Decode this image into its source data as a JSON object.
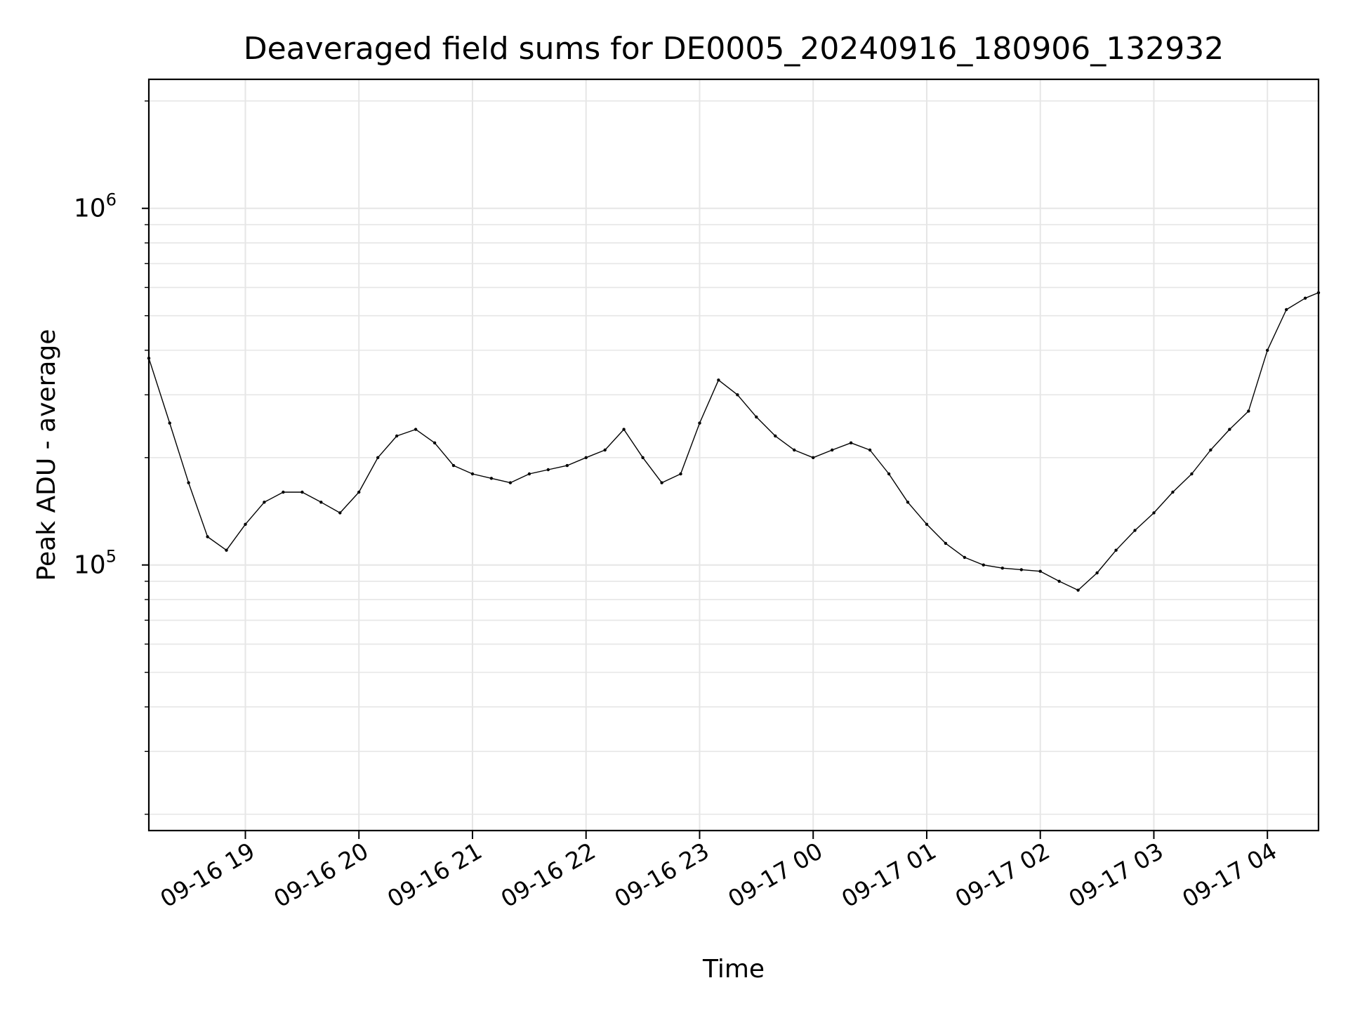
{
  "chart_data": {
    "type": "line",
    "title": "Deaveraged field sums for DE0005_20240916_180906_132932",
    "xlabel": "Time",
    "ylabel": "Peak ADU - average",
    "yscale": "log",
    "ylim": [
      18000,
      2300000
    ],
    "xlim": [
      "2024-09-16 18:09",
      "2024-09-17 04:27"
    ],
    "grid": true,
    "line_color": "#000000",
    "x_ticks": [
      "09-16 19",
      "09-16 20",
      "09-16 21",
      "09-16 22",
      "09-16 23",
      "09-17 00",
      "09-17 01",
      "09-17 02",
      "09-17 03",
      "09-17 04"
    ],
    "y_ticks": [
      {
        "base": "10",
        "exp": "5",
        "value": 100000
      },
      {
        "base": "10",
        "exp": "6",
        "value": 1000000
      }
    ],
    "series": [
      {
        "x": [
          "2024-09-16 18:09",
          "2024-09-16 18:20",
          "2024-09-16 18:30",
          "2024-09-16 18:40",
          "2024-09-16 18:50",
          "2024-09-16 19:00",
          "2024-09-16 19:10",
          "2024-09-16 19:20",
          "2024-09-16 19:30",
          "2024-09-16 19:40",
          "2024-09-16 19:50",
          "2024-09-16 20:00",
          "2024-09-16 20:10",
          "2024-09-16 20:20",
          "2024-09-16 20:30",
          "2024-09-16 20:40",
          "2024-09-16 20:50",
          "2024-09-16 21:00",
          "2024-09-16 21:10",
          "2024-09-16 21:20",
          "2024-09-16 21:30",
          "2024-09-16 21:40",
          "2024-09-16 21:50",
          "2024-09-16 22:00",
          "2024-09-16 22:10",
          "2024-09-16 22:20",
          "2024-09-16 22:30",
          "2024-09-16 22:40",
          "2024-09-16 22:50",
          "2024-09-16 23:00",
          "2024-09-16 23:10",
          "2024-09-16 23:20",
          "2024-09-16 23:30",
          "2024-09-16 23:40",
          "2024-09-16 23:50",
          "2024-09-17 00:00",
          "2024-09-17 00:10",
          "2024-09-17 00:20",
          "2024-09-17 00:30",
          "2024-09-17 00:40",
          "2024-09-17 00:50",
          "2024-09-17 01:00",
          "2024-09-17 01:10",
          "2024-09-17 01:20",
          "2024-09-17 01:30",
          "2024-09-17 01:40",
          "2024-09-17 01:50",
          "2024-09-17 02:00",
          "2024-09-17 02:10",
          "2024-09-17 02:20",
          "2024-09-17 02:30",
          "2024-09-17 02:40",
          "2024-09-17 02:50",
          "2024-09-17 03:00",
          "2024-09-17 03:10",
          "2024-09-17 03:20",
          "2024-09-17 03:30",
          "2024-09-17 03:40",
          "2024-09-17 03:50",
          "2024-09-17 04:00",
          "2024-09-17 04:10",
          "2024-09-17 04:20",
          "2024-09-17 04:27"
        ],
        "y": [
          380000,
          250000,
          170000,
          120000,
          110000,
          130000,
          150000,
          160000,
          160000,
          150000,
          140000,
          160000,
          200000,
          230000,
          240000,
          220000,
          190000,
          180000,
          175000,
          170000,
          180000,
          185000,
          190000,
          200000,
          210000,
          240000,
          200000,
          170000,
          180000,
          250000,
          330000,
          300000,
          260000,
          230000,
          210000,
          200000,
          210000,
          220000,
          210000,
          180000,
          150000,
          130000,
          115000,
          105000,
          100000,
          98000,
          97000,
          96000,
          90000,
          85000,
          95000,
          110000,
          125000,
          140000,
          160000,
          180000,
          210000,
          240000,
          270000,
          400000,
          520000,
          560000,
          580000
        ]
      }
    ]
  }
}
